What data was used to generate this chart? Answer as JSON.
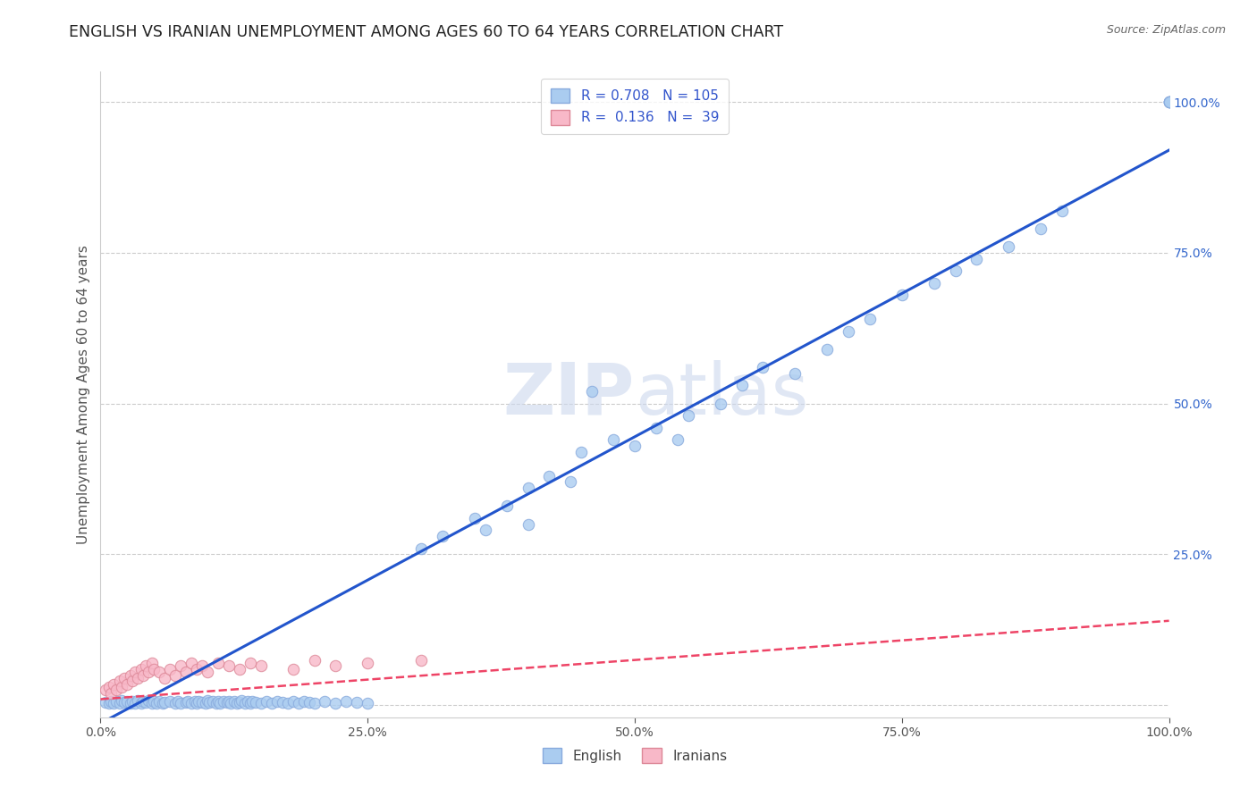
{
  "title": "ENGLISH VS IRANIAN UNEMPLOYMENT AMONG AGES 60 TO 64 YEARS CORRELATION CHART",
  "source": "Source: ZipAtlas.com",
  "ylabel": "Unemployment Among Ages 60 to 64 years",
  "xlim": [
    0.0,
    1.0
  ],
  "ylim": [
    -0.02,
    1.05
  ],
  "background_color": "#ffffff",
  "grid_color": "#cccccc",
  "english_color": "#aaccf0",
  "english_edge_color": "#88aadd",
  "iranian_color": "#f8b8c8",
  "iranian_edge_color": "#dd8898",
  "english_line_color": "#2255cc",
  "iranian_line_color": "#ee4466",
  "legend_R_english": "0.708",
  "legend_N_english": "105",
  "legend_R_iranian": "0.136",
  "legend_N_iranian": "39",
  "title_color": "#222222",
  "source_color": "#666666",
  "axis_color": "#555555",
  "right_tick_color": "#3366cc",
  "watermark_color": "#ccd8ee",
  "eng_line_x0": 0.0,
  "eng_line_y0": -0.03,
  "eng_line_x1": 1.0,
  "eng_line_y1": 0.92,
  "iran_line_x0": 0.0,
  "iran_line_y0": 0.01,
  "iran_line_x1": 1.0,
  "iran_line_y1": 0.14,
  "eng_x_cluster_low": [
    0.005,
    0.008,
    0.01,
    0.012,
    0.015,
    0.018,
    0.02,
    0.022,
    0.025,
    0.028,
    0.03,
    0.032,
    0.035,
    0.038,
    0.04,
    0.042,
    0.045,
    0.048,
    0.05,
    0.052,
    0.055,
    0.058,
    0.06,
    0.065,
    0.07,
    0.072,
    0.075,
    0.08,
    0.082,
    0.085,
    0.088,
    0.09,
    0.092,
    0.095,
    0.098,
    0.1,
    0.102,
    0.105,
    0.108,
    0.11,
    0.112,
    0.115,
    0.118,
    0.12,
    0.122,
    0.125,
    0.128,
    0.13,
    0.132,
    0.135,
    0.138,
    0.14,
    0.142,
    0.145,
    0.15,
    0.155,
    0.16,
    0.165,
    0.17,
    0.175,
    0.18,
    0.185,
    0.19,
    0.195,
    0.2,
    0.21,
    0.22,
    0.23,
    0.24,
    0.25
  ],
  "eng_y_cluster_low": [
    0.005,
    0.003,
    0.007,
    0.004,
    0.006,
    0.003,
    0.008,
    0.005,
    0.007,
    0.004,
    0.006,
    0.003,
    0.008,
    0.004,
    0.007,
    0.005,
    0.008,
    0.003,
    0.006,
    0.004,
    0.007,
    0.003,
    0.005,
    0.007,
    0.004,
    0.006,
    0.003,
    0.005,
    0.007,
    0.004,
    0.006,
    0.003,
    0.007,
    0.005,
    0.004,
    0.008,
    0.005,
    0.007,
    0.004,
    0.006,
    0.003,
    0.007,
    0.005,
    0.006,
    0.004,
    0.007,
    0.003,
    0.005,
    0.008,
    0.004,
    0.006,
    0.003,
    0.007,
    0.005,
    0.004,
    0.006,
    0.003,
    0.007,
    0.005,
    0.004,
    0.006,
    0.003,
    0.007,
    0.005,
    0.004,
    0.006,
    0.003,
    0.007,
    0.005,
    0.004
  ],
  "eng_x_sparse": [
    0.3,
    0.32,
    0.35,
    0.36,
    0.38,
    0.4,
    0.4,
    0.42,
    0.44,
    0.45,
    0.46,
    0.48,
    0.5,
    0.52,
    0.54,
    0.55,
    0.58,
    0.6,
    0.62,
    0.65,
    0.68,
    0.7,
    0.72,
    0.75,
    0.78,
    0.8,
    0.82,
    0.85,
    0.88,
    0.9,
    1.0,
    1.0,
    1.0,
    1.0,
    1.0
  ],
  "eng_y_sparse": [
    0.26,
    0.28,
    0.31,
    0.29,
    0.33,
    0.36,
    0.3,
    0.38,
    0.37,
    0.42,
    0.52,
    0.44,
    0.43,
    0.46,
    0.44,
    0.48,
    0.5,
    0.53,
    0.56,
    0.55,
    0.59,
    0.62,
    0.64,
    0.68,
    0.7,
    0.72,
    0.74,
    0.76,
    0.79,
    0.82,
    1.0,
    1.0,
    1.0,
    1.0,
    1.0
  ],
  "iran_x": [
    0.005,
    0.008,
    0.01,
    0.012,
    0.015,
    0.018,
    0.02,
    0.022,
    0.025,
    0.028,
    0.03,
    0.032,
    0.035,
    0.038,
    0.04,
    0.042,
    0.045,
    0.048,
    0.05,
    0.055,
    0.06,
    0.065,
    0.07,
    0.075,
    0.08,
    0.085,
    0.09,
    0.095,
    0.1,
    0.11,
    0.12,
    0.13,
    0.14,
    0.15,
    0.18,
    0.2,
    0.22,
    0.25,
    0.3
  ],
  "iran_y": [
    0.025,
    0.03,
    0.02,
    0.035,
    0.025,
    0.04,
    0.03,
    0.045,
    0.035,
    0.05,
    0.04,
    0.055,
    0.045,
    0.06,
    0.05,
    0.065,
    0.055,
    0.07,
    0.06,
    0.055,
    0.045,
    0.06,
    0.05,
    0.065,
    0.055,
    0.07,
    0.06,
    0.065,
    0.055,
    0.07,
    0.065,
    0.06,
    0.07,
    0.065,
    0.06,
    0.075,
    0.065,
    0.07,
    0.075
  ]
}
